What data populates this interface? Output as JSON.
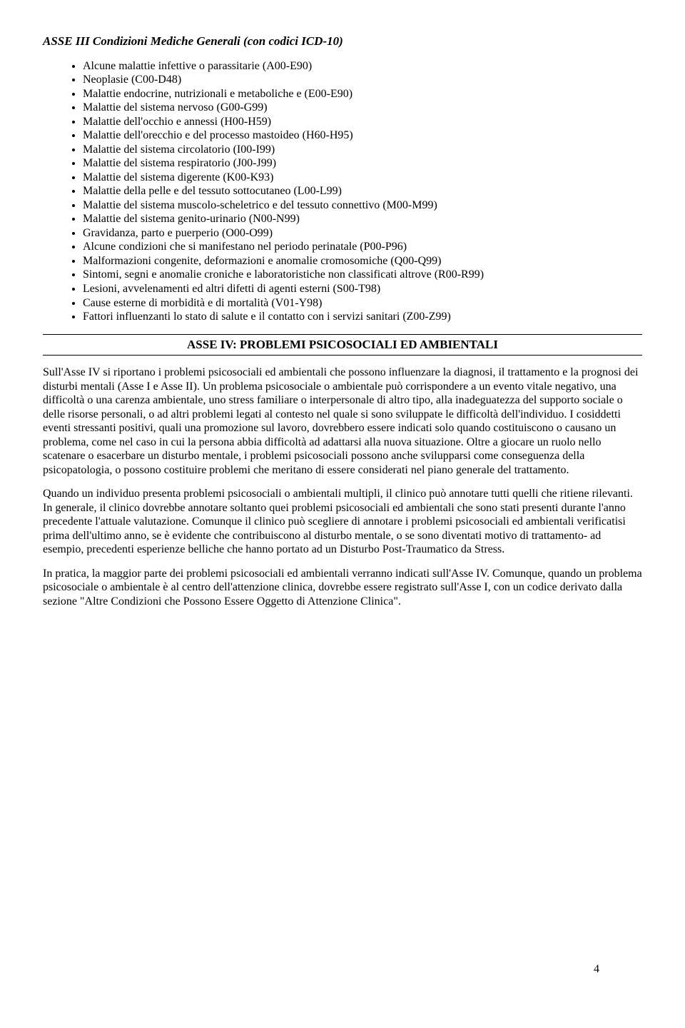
{
  "heading": "ASSE III Condizioni Mediche Generali (con codici ICD-10)",
  "bullets": [
    "Alcune malattie infettive o parassitarie (A00-E90)",
    "Neoplasie (C00-D48)",
    "Malattie endocrine, nutrizionali e metaboliche e (E00-E90)",
    "Malattie del sistema nervoso (G00-G99)",
    "Malattie dell'occhio e annessi (H00-H59)",
    "Malattie dell'orecchio e del processo mastoideo (H60-H95)",
    "Malattie del sistema circolatorio (I00-I99)",
    "Malattie del sistema respiratorio (J00-J99)",
    "Malattie del sistema digerente (K00-K93)",
    "Malattie della pelle e del tessuto sottocutaneo (L00-L99)",
    "Malattie del sistema muscolo-scheletrico e del tessuto connettivo (M00-M99)",
    "Malattie del sistema genito-urinario (N00-N99)",
    "Gravidanza, parto e puerperio (O00-O99)",
    "Alcune condizioni che si manifestano nel periodo perinatale (P00-P96)",
    "Malformazioni congenite, deformazioni e anomalie cromosomiche (Q00-Q99)",
    "Sintomi, segni e anomalie croniche e laboratoristiche non classificati altrove (R00-R99)",
    "Lesioni, avvelenamenti ed altri difetti di agenti esterni (S00-T98)",
    "Cause esterne di morbidità e di mortalità (V01-Y98)",
    "Fattori influenzanti lo stato di salute e il contatto con i servizi sanitari (Z00-Z99)"
  ],
  "section_heading": "ASSE IV: PROBLEMI PSICOSOCIALI ED AMBIENTALI",
  "paragraphs": [
    "Sull'Asse IV si riportano i problemi psicosociali ed ambientali che possono influenzare la diagnosi, il trattamento e la prognosi dei disturbi mentali (Asse I e Asse II). Un problema psicosociale o ambientale può corrispondere a un evento vitale negativo, una difficoltà o una carenza ambientale, uno stress familiare o interpersonale di altro tipo, alla inadeguatezza del supporto sociale o delle risorse personali, o ad altri problemi legati al contesto nel quale si sono sviluppate le difficoltà dell'individuo. I cosiddetti eventi stressanti positivi, quali una promozione sul lavoro, dovrebbero essere indicati solo quando costituiscono o causano un problema, come nel caso in cui la persona abbia difficoltà ad adattarsi alla nuova situazione. Oltre a giocare un ruolo nello scatenare o esacerbare un disturbo mentale, i problemi psicosociali possono anche svilupparsi come conseguenza della psicopatologia, o possono costituire problemi che meritano di essere considerati nel piano generale del trattamento.",
    "Quando un individuo presenta problemi psicosociali o ambientali multipli, il clinico può annotare tutti quelli che ritiene rilevanti. In generale, il clinico dovrebbe annotare soltanto quei problemi psicosociali ed ambientali che sono stati presenti durante l'anno precedente l'attuale valutazione. Comunque il clinico può scegliere di annotare i problemi psicosociali ed ambientali verificatisi prima dell'ultimo anno, se è evidente che contribuiscono al disturbo mentale, o se sono diventati motivo di trattamento- ad esempio, precedenti esperienze belliche che hanno portato ad un Disturbo Post-Traumatico da Stress.",
    "In pratica, la maggior parte dei problemi psicosociali ed ambientali verranno indicati sull'Asse IV. Comunque, quando un problema psicosociale o ambientale è al centro dell'attenzione clinica, dovrebbe essere registrato sull'Asse I, con un codice derivato dalla sezione \"Altre Condizioni che Possono Essere Oggetto di Attenzione Clinica\"."
  ],
  "page_number": "4"
}
